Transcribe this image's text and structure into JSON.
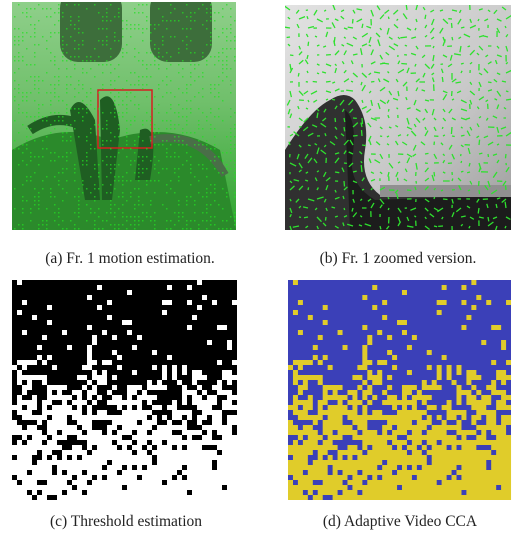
{
  "figure": {
    "panels": [
      {
        "caption": "(a) Fr. 1 motion estimation."
      },
      {
        "caption": "(b) Fr. 1 zoomed version."
      },
      {
        "caption": "(c) Threshold estimation"
      },
      {
        "caption": "(d) Adaptive Video CCA"
      }
    ]
  }
}
